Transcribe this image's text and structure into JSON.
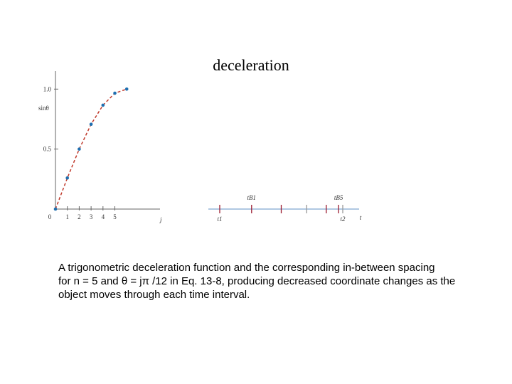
{
  "title": "deceleration",
  "plot": {
    "y_label": "sinθ",
    "x_label": "j",
    "x": [
      0,
      1,
      2,
      3,
      4,
      5,
      6
    ],
    "values": [
      0,
      0.259,
      0.5,
      0.707,
      0.866,
      0.966,
      1
    ],
    "xlim": [
      0,
      8.8
    ],
    "ylim": [
      0,
      1.15
    ],
    "xticks": [
      0,
      1,
      2,
      3,
      4,
      5
    ],
    "yticks": [
      0.5,
      {
        "value": 1,
        "label": "1.0"
      }
    ]
  },
  "timeline": {
    "axis_label": "t",
    "start_label": "t1",
    "end_label": "t2",
    "first_label": "tB1",
    "last_label": "tB5"
  },
  "caption": [
    "A trigonometric deceleration function and the corresponding in-between spacing",
    "for n = 5 and θ = jπ /12 in Eq. 13-8, producing decreased coordinate changes as the",
    "object moves through each time interval."
  ]
}
